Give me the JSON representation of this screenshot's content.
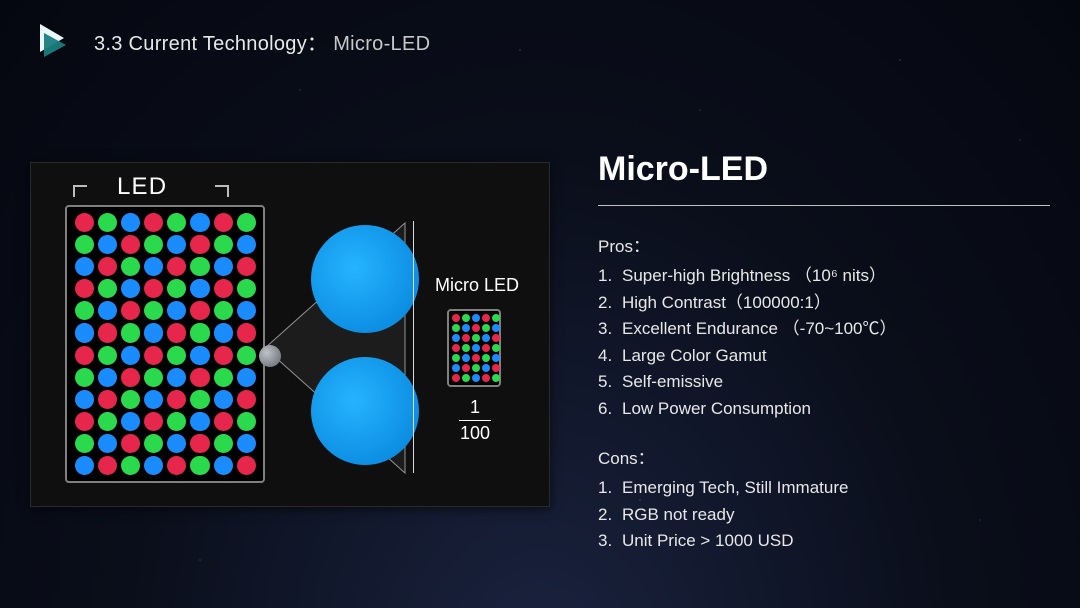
{
  "header": {
    "crumb_main": "3.3 Current Technology：",
    "crumb_sub": "Micro-LED"
  },
  "diagram": {
    "led_label": "LED",
    "micro_label": "Micro LED",
    "fraction_top": "1",
    "fraction_bottom": "100",
    "panel": {
      "cols": 8,
      "rows": 12,
      "row_offsets": [
        0,
        1,
        2,
        0,
        1,
        2,
        0,
        1,
        2,
        0,
        1,
        2
      ],
      "palette": [
        "#e6264a",
        "#2bd94d",
        "#1b8cff"
      ]
    },
    "micro_chip": {
      "cols": 5,
      "rows": 7,
      "row_offsets": [
        0,
        1,
        2,
        0,
        1,
        2,
        0
      ],
      "palette": [
        "#e6264a",
        "#2bd94d",
        "#1b8cff"
      ]
    },
    "big_circle_color": "#1b9dff",
    "highlight_color": "#9aa0a6",
    "cone_fill": "#1c1c1c",
    "cone_stroke": "#939393",
    "background": "#0f0f10"
  },
  "right": {
    "title": "Micro-LED",
    "pros_label": "Pros：",
    "pros": [
      "Super-high Brightness （10⁶ nits）",
      "High Contrast（100000:1）",
      "Excellent Endurance （-70~100℃）",
      "Large Color Gamut",
      "Self-emissive",
      "Low Power Consumption"
    ],
    "cons_label": "Cons：",
    "cons": [
      "Emerging Tech, Still Immature",
      "RGB not ready",
      "Unit Price > 1000 USD"
    ]
  },
  "colors": {
    "text": "#e8e8e8",
    "title": "#ffffff",
    "rule": "#c0c0c0",
    "bg_start": "#1a2340",
    "bg_end": "#050710"
  }
}
